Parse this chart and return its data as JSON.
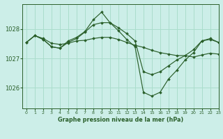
{
  "bg_color": "#cceee8",
  "grid_color": "#aaddcc",
  "line_color": "#2a5f2a",
  "marker_color": "#2a5f2a",
  "xlabel": "Graphe pression niveau de la mer (hPa)",
  "ylabel_ticks": [
    1026,
    1027,
    1028
  ],
  "xlim": [
    -0.5,
    23
  ],
  "ylim": [
    1025.3,
    1028.85
  ],
  "series": [
    [
      1027.55,
      1027.78,
      1027.68,
      1027.52,
      1027.48,
      1027.52,
      1027.6,
      1027.62,
      1027.68,
      1027.72,
      1027.72,
      1027.65,
      1027.55,
      1027.45,
      1027.38,
      1027.28,
      1027.2,
      1027.15,
      1027.1,
      1027.1,
      1027.05,
      1027.12,
      1027.18,
      1027.15
    ],
    [
      1027.55,
      1027.78,
      1027.65,
      1027.4,
      1027.35,
      1027.55,
      1027.68,
      1027.9,
      1028.15,
      1028.22,
      1028.22,
      1028.05,
      1027.85,
      1027.6,
      1026.55,
      1026.45,
      1026.55,
      1026.75,
      1026.95,
      1027.1,
      1027.3,
      1027.6,
      1027.65,
      1027.55
    ],
    [
      1027.55,
      1027.78,
      1027.65,
      1027.4,
      1027.35,
      1027.6,
      1027.72,
      1027.92,
      1028.32,
      1028.58,
      1028.22,
      1027.95,
      1027.65,
      1027.4,
      1025.85,
      1025.72,
      1025.85,
      1026.3,
      1026.6,
      1026.95,
      1027.2,
      1027.6,
      1027.68,
      1027.55
    ]
  ]
}
